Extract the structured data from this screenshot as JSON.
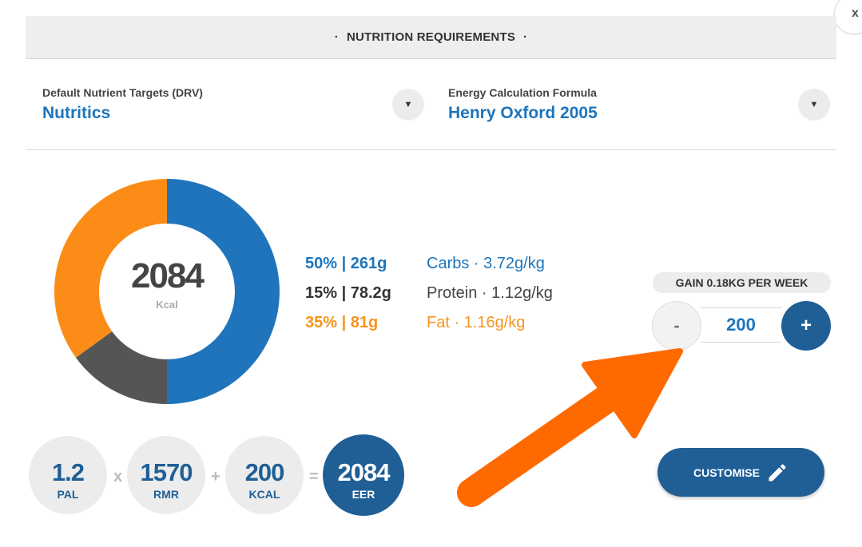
{
  "close": {
    "label": "x"
  },
  "header": {
    "dot_left": "·",
    "title": "NUTRITION REQUIREMENTS",
    "dot_right": "·"
  },
  "selectors": {
    "drv": {
      "label": "Default Nutrient Targets (DRV)",
      "value": "Nutritics",
      "icon": "chevron-down-icon"
    },
    "formula": {
      "label": "Energy Calculation Formula",
      "value": "Henry Oxford 2005",
      "icon": "chevron-down-icon"
    }
  },
  "energy": {
    "value": "2084",
    "unit": "Kcal"
  },
  "macros": [
    {
      "amount": "50% | 261g",
      "desc": "Carbs · 3.72g/kg",
      "color": "#1c75bc",
      "percent": 50
    },
    {
      "amount": "15% | 78.2g",
      "desc": "Protein · 1.12g/kg",
      "color": "#333333",
      "desc_color": "#444444",
      "percent": 15
    },
    {
      "amount": "35% | 81g",
      "desc": "Fat · 1.16g/kg",
      "color": "#f7941d",
      "percent": 35
    }
  ],
  "donut_colors": {
    "carbs": "#1f74bb",
    "protein": "#555555",
    "fat": "#fb8c17"
  },
  "gain": {
    "label": "GAIN 0.18KG PER WEEK",
    "minus_label": "-",
    "value": "200",
    "plus_label": "+"
  },
  "calc": {
    "pal": {
      "value": "1.2",
      "label": "PAL"
    },
    "op1": "x",
    "rmr": {
      "value": "1570",
      "label": "RMR"
    },
    "op2": "+",
    "kcal": {
      "value": "200",
      "label": "KCAL"
    },
    "op3": "=",
    "eer": {
      "value": "2084",
      "label": "EER"
    }
  },
  "customise": {
    "label": "CUSTOMISE",
    "icon": "pencil-icon"
  },
  "colors": {
    "accent": "#1c75bc",
    "dark_accent": "#1f5f96",
    "arrow": "#ff6a00"
  }
}
